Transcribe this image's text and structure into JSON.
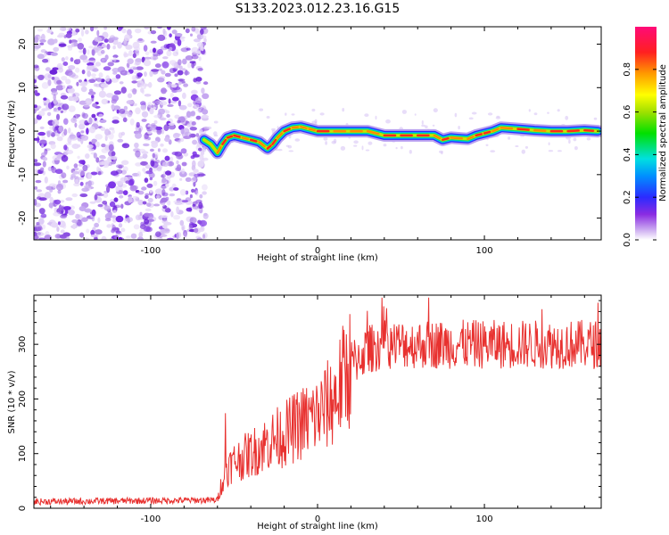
{
  "title": "S133.2023.012.23.16.G15",
  "chart_data": [
    {
      "type": "heatmap",
      "title": "",
      "xlabel": "Height of straight line (km)",
      "ylabel": "Frequency (Hz)",
      "xlim": [
        -170,
        170
      ],
      "ylim": [
        -25,
        24
      ],
      "xticks": [
        -100,
        0,
        100
      ],
      "yticks": [
        -20,
        -10,
        0,
        10,
        20
      ],
      "colorbar": {
        "label": "Normalized spectral amplitude",
        "range": [
          0,
          1
        ],
        "ticks": [
          0.0,
          0.2,
          0.4,
          0.6,
          0.8
        ],
        "tick_labels": [
          "0.0",
          "0.2",
          "0.4",
          "0.6",
          "0.8"
        ]
      },
      "noise_region_x": [
        -170,
        -67
      ],
      "signal_track": {
        "x": [
          -68,
          -64,
          -60,
          -57,
          -54,
          -50,
          -45,
          -40,
          -35,
          -30,
          -27,
          -24,
          -20,
          -15,
          -10,
          -5,
          0,
          10,
          20,
          30,
          40,
          50,
          60,
          70,
          75,
          80,
          90,
          95,
          100,
          105,
          110,
          120,
          130,
          140,
          150,
          160,
          168
        ],
        "y": [
          -2,
          -3,
          -5,
          -3,
          -1.5,
          -1,
          -1.5,
          -2,
          -2.5,
          -4,
          -3,
          -1.5,
          0,
          0.8,
          1,
          0.5,
          0,
          0,
          0,
          0,
          -1,
          -1,
          -1,
          -1,
          -2,
          -1.5,
          -1.8,
          -1,
          -0.5,
          0,
          0.8,
          0.5,
          0.2,
          0,
          0,
          0.2,
          0
        ]
      }
    },
    {
      "type": "line",
      "title": "",
      "xlabel": "Height of straight line (km)",
      "ylabel": "SNR (10 * v/v)",
      "xlim": [
        -170,
        170
      ],
      "ylim": [
        0,
        390
      ],
      "xticks": [
        -100,
        0,
        100
      ],
      "yticks": [
        0,
        100,
        200,
        300
      ],
      "color": "#e8312f",
      "envelope": {
        "x": [
          -170,
          -60,
          -58,
          -55,
          -50,
          -40,
          -30,
          -20,
          -10,
          0,
          10,
          20,
          30,
          40,
          50,
          60,
          170
        ],
        "y": [
          12,
          15,
          40,
          70,
          85,
          100,
          120,
          135,
          155,
          170,
          200,
          265,
          290,
          300,
          300,
          300,
          300
        ]
      }
    }
  ]
}
